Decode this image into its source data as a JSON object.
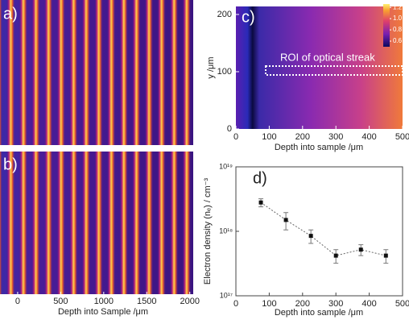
{
  "chart_data": [
    {
      "type": "image",
      "panels": [
        "a)",
        "b)"
      ],
      "xlabel": "Depth into Sample /μm",
      "xlim": [
        -205,
        2040
      ],
      "xticks": [
        0,
        500,
        1000,
        1500,
        2000
      ]
    },
    {
      "type": "heatmap",
      "label": "c)",
      "xlabel": "Depth into sample /μm",
      "ylabel": "y /μm",
      "xlim": [
        0,
        500
      ],
      "xticks": [
        0,
        100,
        200,
        300,
        400,
        500
      ],
      "ylim": [
        0,
        214
      ],
      "yticks": [
        0,
        100,
        200
      ],
      "annotation": "ROI of optical streak",
      "clim": [
        0.5,
        1.26
      ],
      "cticks": [
        0.6,
        0.8,
        {
          "value": 1.0,
          "label": "1.0"
        },
        1.2
      ]
    },
    {
      "type": "scatter",
      "label": "d)",
      "xlabel": "Depth into sample /μm",
      "ylabel": "Electron density (nₑ) / cm⁻³",
      "log_y": true,
      "xlim": [
        0,
        500
      ],
      "xticks": [
        0,
        100,
        200,
        300,
        400,
        500
      ],
      "ylim": [
        1e+17,
        1e+19
      ],
      "yticks": [
        {
          "value": 1e+17,
          "label": "10¹⁷"
        },
        {
          "value": 1e+18,
          "label": "10¹⁸"
        },
        {
          "value": 1e+19,
          "label": "10¹⁹"
        }
      ],
      "color": "#111111",
      "x": [
        75,
        150,
        225,
        300,
        375,
        450
      ],
      "values": [
        2.8e+18,
        1.5e+18,
        8.5e+17,
        4.2e+17,
        5.2e+17,
        4.2e+17
      ],
      "errors": [
        4e+17,
        4.5e+17,
        2e+17,
        1e+17,
        1e+17,
        1e+17
      ]
    }
  ]
}
